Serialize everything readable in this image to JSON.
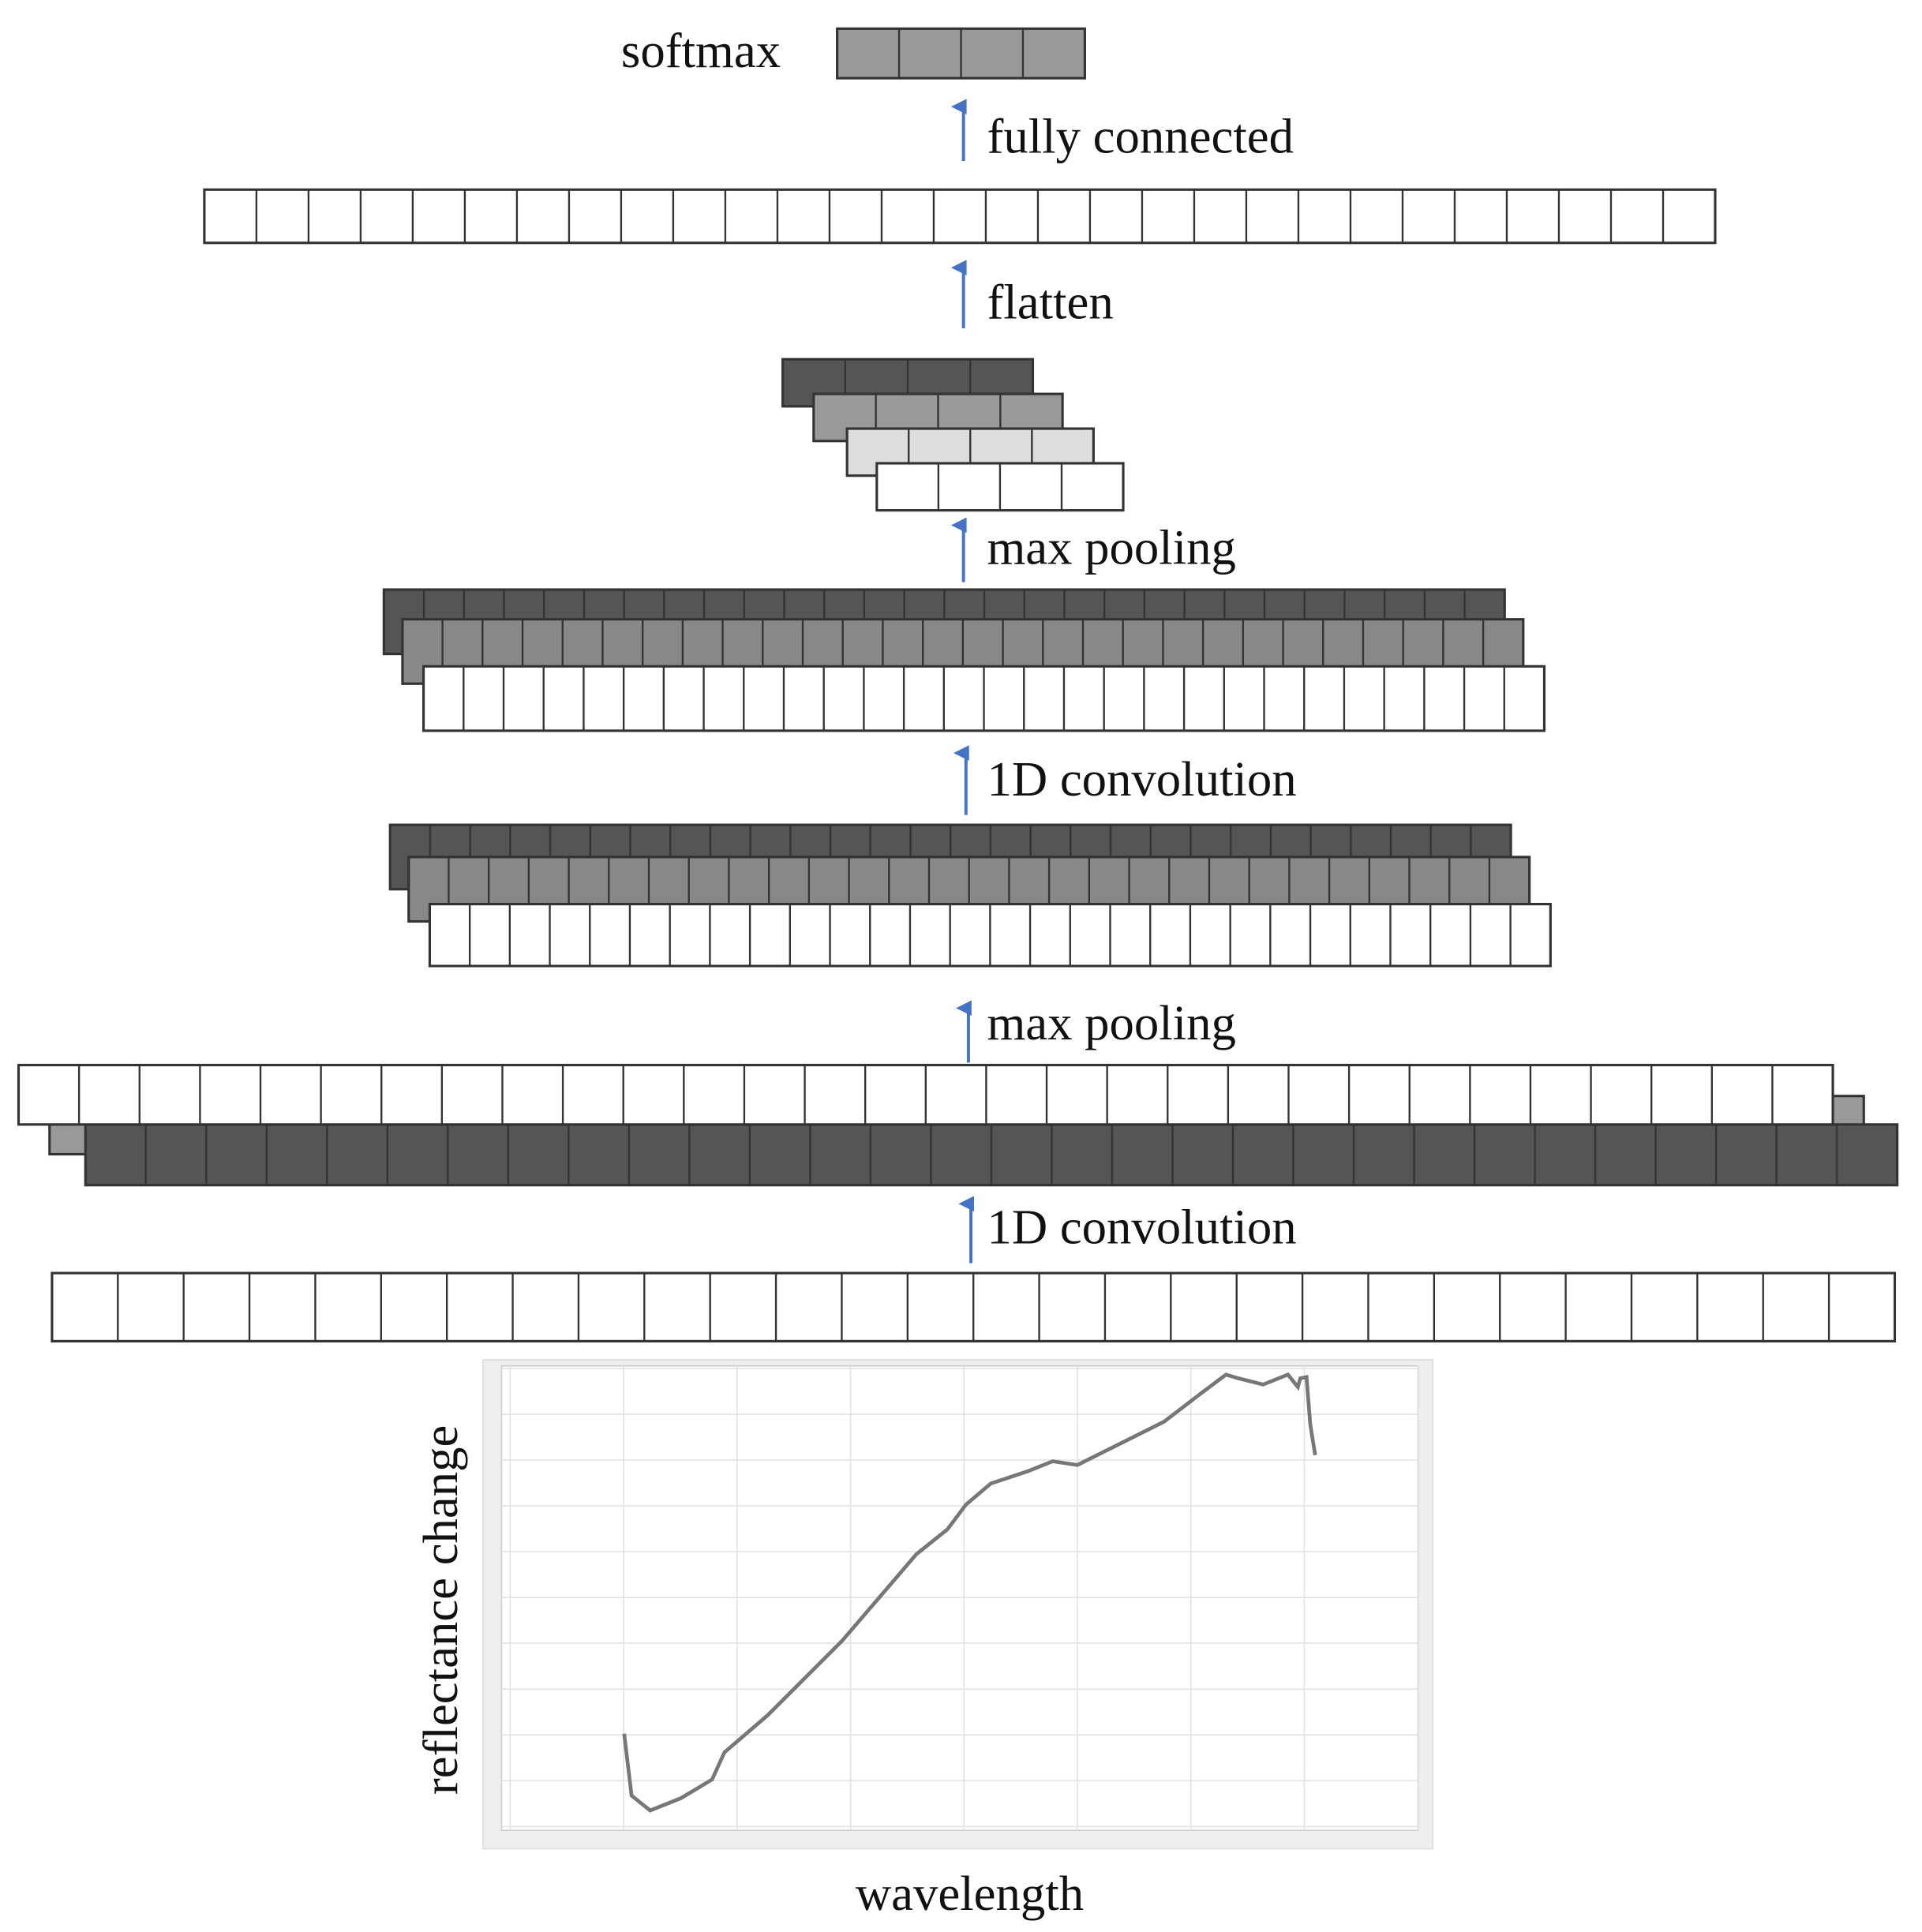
{
  "output": {
    "label": "softmax"
  },
  "steps": [
    "fully connected",
    "flatten",
    "max pooling",
    "1D convolution",
    "max pooling",
    "1D convolution"
  ],
  "plot": {
    "y_label": "reflectance change",
    "x_label": "wavelength"
  }
}
